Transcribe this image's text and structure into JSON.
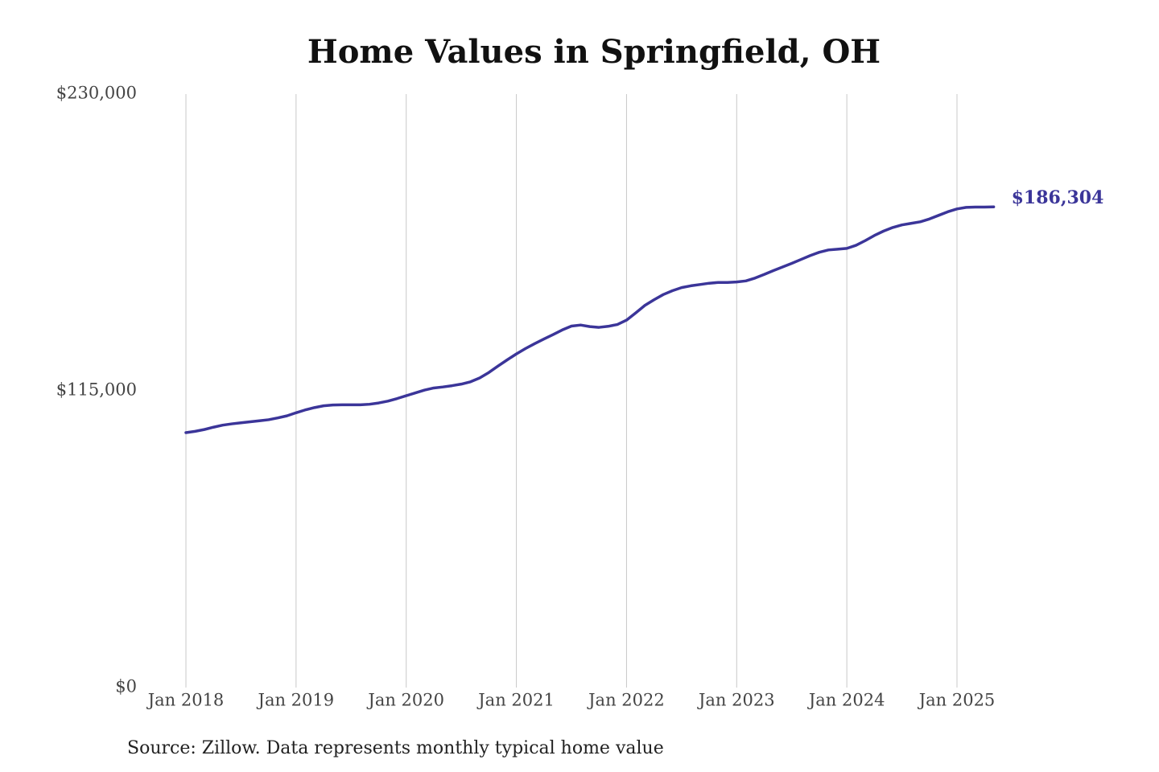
{
  "chart_data": {
    "type": "line",
    "title": "Home Values in Springfield, OH",
    "source": "Source: Zillow. Data represents monthly typical home value",
    "categories": [
      "Jan 2018",
      null,
      null,
      null,
      null,
      null,
      null,
      null,
      null,
      null,
      null,
      null,
      "Jan 2019",
      null,
      null,
      null,
      null,
      null,
      null,
      null,
      null,
      null,
      null,
      null,
      "Jan 2020",
      null,
      null,
      null,
      null,
      null,
      null,
      null,
      null,
      null,
      null,
      null,
      "Jan 2021",
      null,
      null,
      null,
      null,
      null,
      null,
      null,
      null,
      null,
      null,
      null,
      "Jan 2022",
      null,
      null,
      null,
      null,
      null,
      null,
      null,
      null,
      null,
      null,
      null,
      "Jan 2023",
      null,
      null,
      null,
      null,
      null,
      null,
      null,
      null,
      null,
      null,
      null,
      "Jan 2024",
      null,
      null,
      null,
      null,
      null,
      null,
      null,
      null,
      null,
      null,
      null,
      "Jan 2025",
      null,
      null,
      null,
      null
    ],
    "series": [
      {
        "name": "Home value",
        "color": "#3b3599",
        "values": [
          98800,
          99300,
          100000,
          100900,
          101700,
          102200,
          102600,
          103000,
          103400,
          103800,
          104500,
          105300,
          106500,
          107600,
          108500,
          109200,
          109500,
          109600,
          109600,
          109600,
          109800,
          110300,
          111000,
          112000,
          113100,
          114200,
          115300,
          116100,
          116500,
          117000,
          117600,
          118500,
          120000,
          122100,
          124600,
          127000,
          129300,
          131400,
          133300,
          135100,
          136800,
          138600,
          140100,
          140500,
          139900,
          139600,
          140000,
          140700,
          142400,
          145200,
          148100,
          150300,
          152300,
          153800,
          155000,
          155700,
          156200,
          156700,
          157000,
          157000,
          157200,
          157600,
          158700,
          160100,
          161600,
          163000,
          164400,
          165900,
          167400,
          168700,
          169600,
          169900,
          170200,
          171400,
          173200,
          175200,
          176900,
          178300,
          179300,
          179900,
          180500,
          181600,
          183000,
          184400,
          185500,
          186100,
          186200,
          186200,
          186304
        ]
      }
    ],
    "end_label": "$186,304",
    "ylim": [
      0,
      230000
    ],
    "yticks": [
      {
        "value": 0,
        "label": "$0"
      },
      {
        "value": 115000,
        "label": "$115,000"
      },
      {
        "value": 230000,
        "label": "$230,000"
      }
    ],
    "grid": "x"
  }
}
